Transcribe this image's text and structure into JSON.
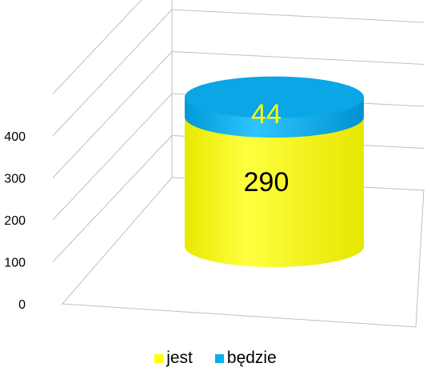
{
  "chart_data": {
    "type": "bar",
    "stacked": true,
    "three_d": true,
    "bar_shape": "cylinder",
    "categories": [
      ""
    ],
    "series": [
      {
        "name": "jest",
        "values": [
          290
        ],
        "color": "#FFFF00"
      },
      {
        "name": "będzie",
        "values": [
          44
        ],
        "color": "#00B0F0"
      }
    ],
    "data_labels": [
      "290",
      "44"
    ],
    "data_label_colors": [
      "#000000",
      "#FFFF00"
    ],
    "ylim": [
      0,
      500
    ],
    "yticks": [
      0,
      100,
      200,
      300,
      400
    ],
    "ytick_labels": [
      "0",
      "100",
      "200",
      "300",
      "400"
    ],
    "grid": true,
    "legend": {
      "position": "bottom",
      "entries": [
        "jest",
        "będzie"
      ]
    }
  }
}
